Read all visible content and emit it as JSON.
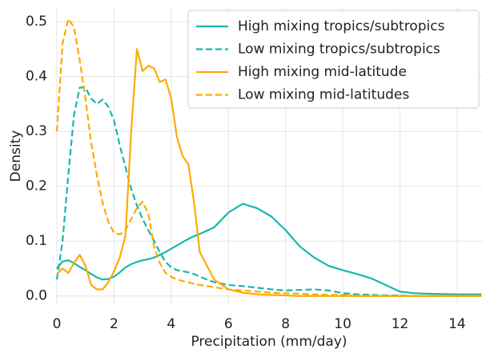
{
  "chart_data": {
    "type": "line",
    "xlabel": "Precipitation (mm/day)",
    "ylabel": "Density",
    "x": [
      0,
      0.2,
      0.4,
      0.6,
      0.8,
      1,
      1.2,
      1.4,
      1.6,
      1.8,
      2,
      2.2,
      2.4,
      2.6,
      2.8,
      3,
      3.2,
      3.4,
      3.6,
      3.8,
      4,
      4.2,
      4.4,
      4.6,
      4.8,
      5,
      5.5,
      6,
      6.5,
      7,
      7.5,
      8,
      8.5,
      9,
      9.5,
      10,
      10.5,
      11,
      11.5,
      12,
      12.5,
      13,
      14,
      14.85
    ],
    "series": [
      {
        "name": "High mixing tropics/subtropics",
        "color": "#17b8ac",
        "linestyle": "solid",
        "values": [
          0.05,
          0.063,
          0.065,
          0.06,
          0.053,
          0.047,
          0.04,
          0.034,
          0.03,
          0.031,
          0.035,
          0.043,
          0.052,
          0.058,
          0.062,
          0.065,
          0.067,
          0.07,
          0.075,
          0.08,
          0.086,
          0.092,
          0.098,
          0.104,
          0.109,
          0.113,
          0.125,
          0.152,
          0.168,
          0.16,
          0.145,
          0.12,
          0.09,
          0.07,
          0.055,
          0.047,
          0.04,
          0.032,
          0.02,
          0.008,
          0.005,
          0.004,
          0.003,
          0.003
        ]
      },
      {
        "name": "Low mixing tropics/subtropics",
        "color": "#17b8ac",
        "linestyle": "dashed",
        "values": [
          0.03,
          0.1,
          0.22,
          0.33,
          0.38,
          0.38,
          0.36,
          0.35,
          0.358,
          0.345,
          0.32,
          0.275,
          0.235,
          0.195,
          0.165,
          0.14,
          0.12,
          0.1,
          0.08,
          0.062,
          0.052,
          0.047,
          0.045,
          0.043,
          0.04,
          0.035,
          0.025,
          0.02,
          0.018,
          0.015,
          0.012,
          0.01,
          0.011,
          0.012,
          0.01,
          0.005,
          0.003,
          0.002,
          0.001,
          0.001,
          0,
          0,
          0,
          0
        ]
      },
      {
        "name": "High mixing mid-latitude",
        "color": "#ffaa00",
        "linestyle": "solid",
        "values": [
          0.04,
          0.05,
          0.042,
          0.06,
          0.075,
          0.055,
          0.02,
          0.012,
          0.012,
          0.025,
          0.045,
          0.07,
          0.11,
          0.3,
          0.45,
          0.41,
          0.42,
          0.415,
          0.39,
          0.395,
          0.36,
          0.29,
          0.255,
          0.24,
          0.17,
          0.08,
          0.03,
          0.012,
          0.006,
          0.003,
          0.002,
          0.001,
          0,
          0,
          0,
          0,
          0,
          0,
          0,
          0,
          0,
          0,
          0,
          0
        ]
      },
      {
        "name": "Low mixing mid-latitudes",
        "color": "#ffaa00",
        "linestyle": "dashed",
        "values": [
          0.3,
          0.46,
          0.505,
          0.49,
          0.43,
          0.36,
          0.28,
          0.22,
          0.17,
          0.135,
          0.115,
          0.112,
          0.12,
          0.14,
          0.16,
          0.172,
          0.15,
          0.09,
          0.06,
          0.042,
          0.035,
          0.03,
          0.027,
          0.025,
          0.022,
          0.02,
          0.016,
          0.012,
          0.01,
          0.008,
          0.006,
          0.005,
          0.004,
          0.003,
          0.002,
          0.002,
          0,
          0,
          0,
          0,
          0,
          0,
          0,
          0
        ]
      }
    ],
    "xlim": [
      0,
      14.87
    ],
    "xticks": [
      0,
      2,
      4,
      6,
      8,
      10,
      12,
      14
    ],
    "ylim": [
      -0.015,
      0.525
    ],
    "yticks": [
      {
        "value": 0,
        "label": "0.0"
      },
      0.1,
      0.2,
      0.3,
      0.4,
      0.5
    ],
    "grid": true,
    "legend": "upper right"
  }
}
